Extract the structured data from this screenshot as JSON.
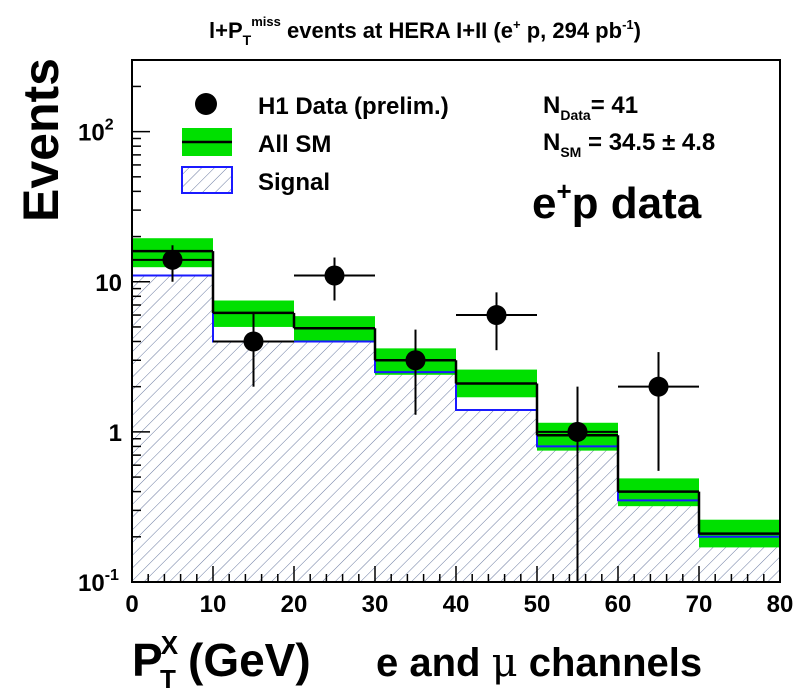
{
  "chart_data": {
    "type": "bar",
    "title": {
      "prefix": "l+P",
      "sub": "T",
      "sup": "miss",
      "middle": " events at HERA I+II (e",
      "sup2": "+",
      "middle2": " p, 294 pb",
      "sup3": "-1",
      "suffix": ")"
    },
    "ylabel": "Events",
    "xlabel": {
      "main": "P",
      "sup": "X",
      "sub": "T",
      "rest": " (GeV)",
      "channels_prefix": "e and ",
      "channels_mu": "μ",
      "channels_suffix": " channels"
    },
    "x_scale": "linear",
    "xlim": [
      0,
      80
    ],
    "y_scale": "log",
    "ylim": [
      0.1,
      300
    ],
    "x_tick_labels": [
      "0",
      "10",
      "20",
      "30",
      "40",
      "50",
      "60",
      "70",
      "80"
    ],
    "y_tick_labels": [
      {
        "value": 0.1,
        "base": "10",
        "exp": "-1"
      },
      {
        "value": 1,
        "base": "1",
        "exp": ""
      },
      {
        "value": 10,
        "base": "10",
        "exp": ""
      },
      {
        "value": 100,
        "base": "10",
        "exp": "2"
      }
    ],
    "bin_edges": [
      0,
      10,
      20,
      30,
      40,
      50,
      60,
      70,
      80
    ],
    "series": [
      {
        "name": "H1 Data (prelim.)",
        "kind": "points",
        "x": [
          5,
          15,
          25,
          35,
          45,
          55,
          65
        ],
        "y": [
          14,
          4,
          11,
          3,
          6,
          1,
          2
        ],
        "y_low": [
          10,
          2,
          7.5,
          1.3,
          3.5,
          0.1,
          0.55
        ],
        "y_high": [
          17.5,
          6.3,
          14.5,
          4.8,
          8.5,
          2,
          3.4
        ],
        "x_err": 5,
        "color": "#000000"
      },
      {
        "name": "All SM",
        "kind": "step_band",
        "values": [
          16,
          6.2,
          4.9,
          3,
          2.1,
          0.95,
          0.4,
          0.21
        ],
        "band_low": [
          12.5,
          5,
          4,
          2.4,
          1.7,
          0.75,
          0.32,
          0.17
        ],
        "band_high": [
          19.5,
          7.5,
          5.9,
          3.6,
          2.6,
          1.15,
          0.49,
          0.26
        ],
        "color": "#000000",
        "band_color": "#00e000"
      },
      {
        "name": "Signal",
        "kind": "hatched_hist",
        "values": [
          11,
          4,
          4,
          2.5,
          1.4,
          0.8,
          0.35,
          0.2
        ],
        "color": "#1a1aff"
      }
    ],
    "legend_position": "top-left",
    "annotations": {
      "n_data": {
        "prefix": "N",
        "sub": "Data",
        "rest": "= 41"
      },
      "n_sm": {
        "prefix": "N",
        "sub": "SM",
        "rest": " = 34.5 ± 4.8"
      },
      "dataset": {
        "prefix": "e",
        "sup": "+",
        "rest": "p data"
      }
    }
  }
}
